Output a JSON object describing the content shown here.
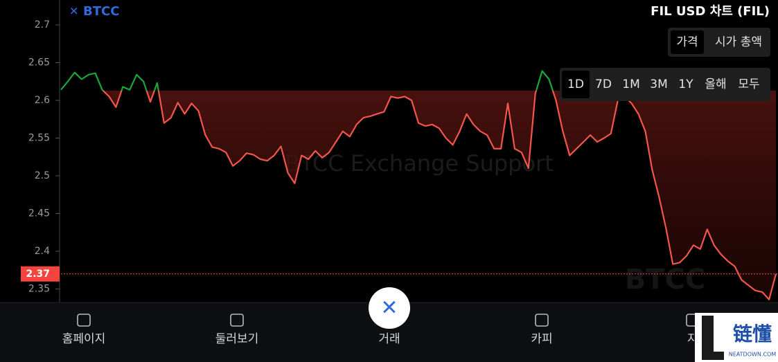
{
  "header": {
    "logo": "BTCC",
    "title": "FIL USD 차트 (FIL)"
  },
  "toggle": {
    "options": [
      "가격",
      "시가 총액"
    ],
    "selected": 0
  },
  "ranges": {
    "options": [
      "1D",
      "7D",
      "1M",
      "3M",
      "1Y",
      "올해",
      "모두"
    ],
    "selected": 0
  },
  "watermark": "BTCC Exchange Support",
  "chart_data": {
    "type": "line",
    "values": [
      2.614,
      2.625,
      2.637,
      2.628,
      2.634,
      2.636,
      2.614,
      2.605,
      2.591,
      2.618,
      2.614,
      2.634,
      2.625,
      2.598,
      2.623,
      2.57,
      2.577,
      2.597,
      2.582,
      2.596,
      2.586,
      2.554,
      2.538,
      2.536,
      2.531,
      2.513,
      2.52,
      2.53,
      2.528,
      2.522,
      2.52,
      2.527,
      2.539,
      2.504,
      2.49,
      2.527,
      2.522,
      2.533,
      2.524,
      2.531,
      2.545,
      2.559,
      2.552,
      2.568,
      2.577,
      2.579,
      2.582,
      2.585,
      2.605,
      2.603,
      2.605,
      2.6,
      2.57,
      2.566,
      2.568,
      2.563,
      2.55,
      2.541,
      2.559,
      2.582,
      2.568,
      2.559,
      2.554,
      2.536,
      2.536,
      2.596,
      2.536,
      2.531,
      2.51,
      2.609,
      2.639,
      2.628,
      2.6,
      2.559,
      2.527,
      2.536,
      2.545,
      2.554,
      2.545,
      2.55,
      2.556,
      2.6,
      2.605,
      2.596,
      2.582,
      2.559,
      2.508,
      2.472,
      2.431,
      2.383,
      2.385,
      2.394,
      2.408,
      2.403,
      2.429,
      2.408,
      2.396,
      2.387,
      2.38,
      2.362,
      2.355,
      2.348,
      2.346,
      2.336,
      2.37
    ],
    "reference_value": 2.613,
    "current_price": 2.37,
    "up_color": "#19a838",
    "down_color": "#f4564c",
    "ylim": [
      2.334,
      2.733
    ],
    "yticks": [
      2.35,
      2.4,
      2.45,
      2.5,
      2.55,
      2.6,
      2.65,
      2.7
    ]
  },
  "nav": {
    "items": [
      "홈페이지",
      "둘러보기",
      "거래",
      "카피",
      "자"
    ]
  },
  "corner_watermark": {
    "title": "链懂",
    "subtitle": "NEATDOWN.COM"
  }
}
